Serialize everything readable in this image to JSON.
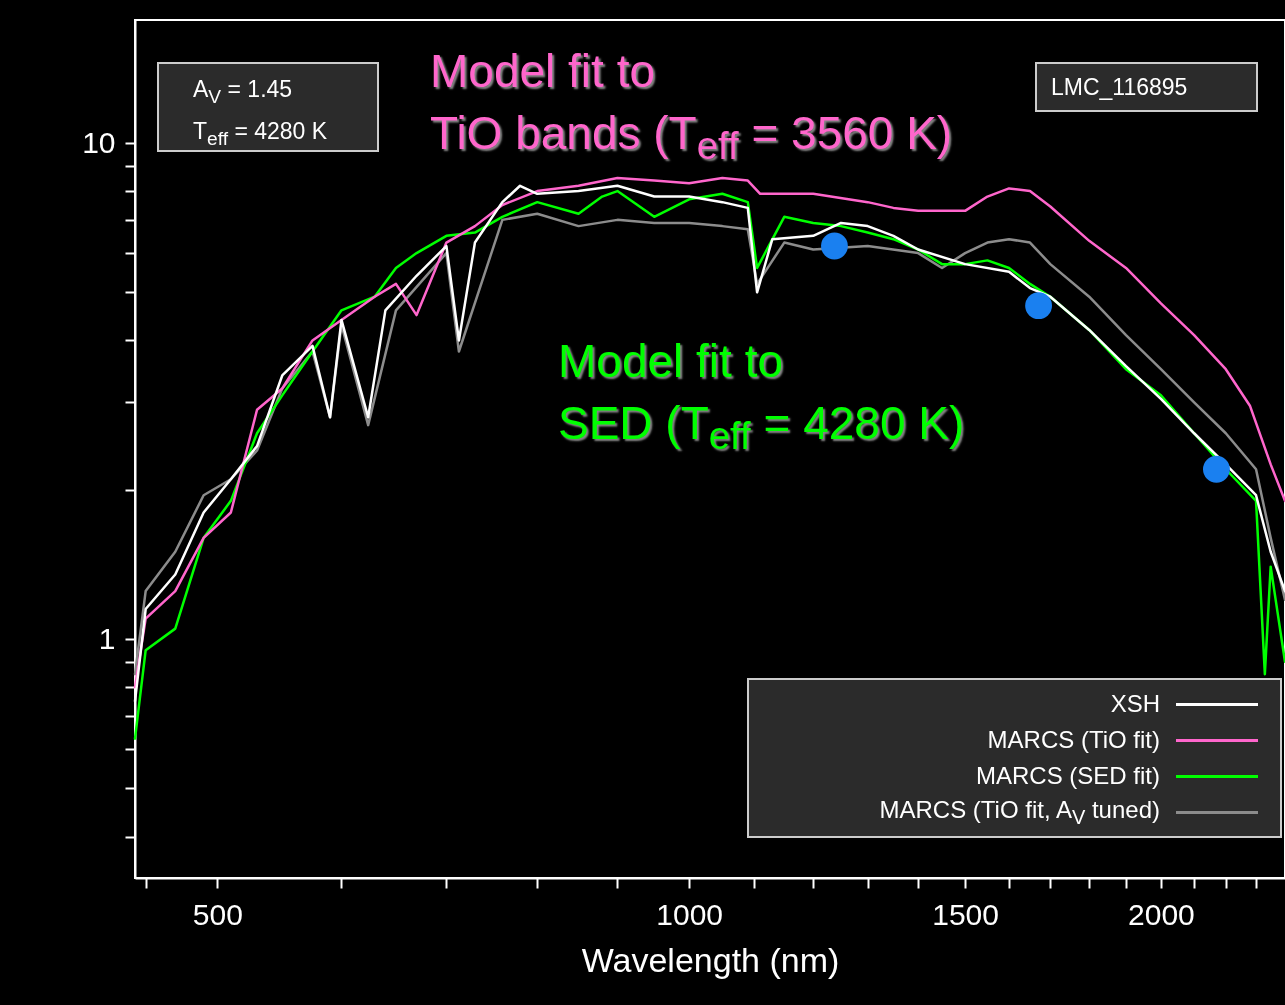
{
  "chart_data": {
    "type": "line",
    "xlabel": "Wavelength (nm)",
    "log": "xy",
    "grid": false,
    "legend": "bottom right",
    "line_style": "solid",
    "marker": "none",
    "xlim": [
      443,
      2400
    ],
    "ylim": [
      0.33,
      17.7
    ],
    "xticks": [
      {
        "value": 450,
        "label": null
      },
      500,
      {
        "value": 600,
        "label": null
      },
      {
        "value": 700,
        "label": null
      },
      {
        "value": 800,
        "label": null
      },
      {
        "value": 900,
        "label": null
      },
      1000,
      {
        "value": 1100,
        "label": null
      },
      {
        "value": 1200,
        "label": null
      },
      {
        "value": 1300,
        "label": null
      },
      {
        "value": 1400,
        "label": null
      },
      1500,
      {
        "value": 1600,
        "label": null
      },
      {
        "value": 1700,
        "label": null
      },
      {
        "value": 1800,
        "label": null
      },
      {
        "value": 1900,
        "label": null
      },
      2000,
      {
        "value": 2100,
        "label": null
      },
      {
        "value": 2200,
        "label": null
      },
      {
        "value": 2300,
        "label": null
      }
    ],
    "yticks": [
      {
        "value": 0.4,
        "label": null
      },
      {
        "value": 0.5,
        "label": null
      },
      {
        "value": 0.6,
        "label": null
      },
      {
        "value": 0.7,
        "label": null
      },
      {
        "value": 0.8,
        "label": null
      },
      {
        "value": 0.9,
        "label": null
      },
      1,
      {
        "value": 2,
        "label": null
      },
      {
        "value": 3,
        "label": null
      },
      {
        "value": 4,
        "label": null
      },
      {
        "value": 5,
        "label": null
      },
      {
        "value": 6,
        "label": null
      },
      {
        "value": 7,
        "label": null
      },
      {
        "value": 8,
        "label": null
      },
      {
        "value": 9,
        "label": null
      },
      10
    ],
    "annotations": [
      "A$_{V}$ = 1.45\nT$_{eff}$ = 4280 K",
      "LMC_116895",
      "Model fit to\nTiO bands (T$_{eff}$ = 3560 K)",
      "Model fit to\nSED (T$_{eff}$ = 4280 K)"
    ],
    "series": [
      {
        "name": "XSH",
        "color": "#ffffff",
        "x": [
          443,
          450,
          470,
          490,
          510,
          530,
          550,
          575,
          590,
          600,
          624,
          640,
          670,
          700,
          713,
          730,
          760,
          780,
          800,
          850,
          900,
          950,
          1000,
          1050,
          1090,
          1105,
          1130,
          1200,
          1250,
          1300,
          1350,
          1400,
          1500,
          1600,
          1650,
          1700,
          1800,
          1900,
          2000,
          2100,
          2200,
          2300,
          2350,
          2400
        ],
        "values": [
          0.75,
          1.15,
          1.35,
          1.8,
          2.1,
          2.45,
          3.4,
          3.9,
          2.8,
          4.4,
          2.8,
          4.6,
          5.4,
          6.2,
          4.0,
          6.3,
          7.6,
          8.2,
          7.9,
          8.0,
          8.2,
          7.8,
          7.8,
          7.6,
          7.4,
          5.0,
          6.4,
          6.5,
          6.9,
          6.8,
          6.5,
          6.1,
          5.7,
          5.5,
          5.1,
          4.9,
          4.2,
          3.55,
          3.05,
          2.6,
          2.25,
          1.95,
          1.5,
          1.25
        ]
      },
      {
        "name": "MARCS (TiO fit)",
        "color": "#ff66cc",
        "x": [
          443,
          450,
          470,
          490,
          510,
          530,
          550,
          575,
          600,
          630,
          650,
          670,
          700,
          730,
          760,
          800,
          850,
          900,
          950,
          1000,
          1050,
          1090,
          1110,
          1200,
          1300,
          1350,
          1400,
          1450,
          1500,
          1550,
          1600,
          1650,
          1700,
          1800,
          1900,
          2000,
          2100,
          2200,
          2280,
          2350,
          2400
        ],
        "values": [
          0.8,
          1.1,
          1.25,
          1.6,
          1.8,
          2.9,
          3.2,
          4.0,
          4.4,
          4.9,
          5.2,
          4.5,
          6.3,
          6.8,
          7.5,
          8.0,
          8.2,
          8.5,
          8.4,
          8.3,
          8.5,
          8.4,
          7.9,
          7.9,
          7.6,
          7.4,
          7.3,
          7.3,
          7.3,
          7.8,
          8.1,
          8.0,
          7.45,
          6.35,
          5.6,
          4.75,
          4.1,
          3.5,
          2.95,
          2.25,
          1.9
        ]
      },
      {
        "name": "MARCS (SED fit)",
        "color": "#00ff00",
        "x": [
          443,
          450,
          470,
          490,
          510,
          530,
          550,
          575,
          600,
          630,
          650,
          670,
          700,
          730,
          760,
          800,
          850,
          880,
          900,
          950,
          1000,
          1050,
          1090,
          1105,
          1150,
          1200,
          1250,
          1300,
          1350,
          1400,
          1450,
          1500,
          1550,
          1600,
          1650,
          1700,
          1800,
          1900,
          2000,
          2100,
          2200,
          2300,
          2330,
          2350,
          2400
        ],
        "values": [
          0.63,
          0.95,
          1.05,
          1.6,
          1.9,
          2.6,
          3.1,
          3.8,
          4.6,
          4.9,
          5.6,
          6.0,
          6.5,
          6.6,
          7.1,
          7.6,
          7.2,
          7.8,
          8.0,
          7.1,
          7.7,
          7.9,
          7.6,
          5.6,
          7.1,
          6.9,
          6.8,
          6.6,
          6.4,
          6.1,
          5.7,
          5.7,
          5.8,
          5.6,
          5.2,
          4.9,
          4.2,
          3.5,
          3.1,
          2.6,
          2.2,
          1.9,
          0.85,
          1.4,
          0.9
        ]
      },
      {
        "name": "MARCS (TiO fit, A$_{V}$ tuned)",
        "color": "#8c8c8c",
        "x": [
          443,
          450,
          470,
          490,
          510,
          530,
          550,
          575,
          590,
          600,
          624,
          650,
          700,
          713,
          760,
          800,
          850,
          900,
          950,
          1000,
          1050,
          1090,
          1105,
          1150,
          1200,
          1300,
          1400,
          1450,
          1500,
          1550,
          1600,
          1650,
          1700,
          1800,
          1900,
          2000,
          2100,
          2200,
          2300,
          2350,
          2400
        ],
        "values": [
          0.85,
          1.25,
          1.5,
          1.95,
          2.1,
          2.4,
          3.2,
          3.8,
          2.8,
          4.3,
          2.7,
          4.6,
          6.0,
          3.8,
          7.0,
          7.2,
          6.8,
          7.0,
          6.9,
          6.9,
          6.8,
          6.7,
          5.2,
          6.3,
          6.1,
          6.2,
          6.0,
          5.6,
          6.0,
          6.3,
          6.4,
          6.3,
          5.7,
          4.9,
          4.1,
          3.5,
          3.0,
          2.6,
          2.2,
          1.6,
          1.2
        ]
      },
      {
        "color": "#1a80f0",
        "type": "scatter",
        "marker": "circle",
        "x": [
          1238,
          1671,
          2170
        ],
        "values": [
          6.2,
          4.7,
          2.2
        ]
      }
    ]
  }
}
